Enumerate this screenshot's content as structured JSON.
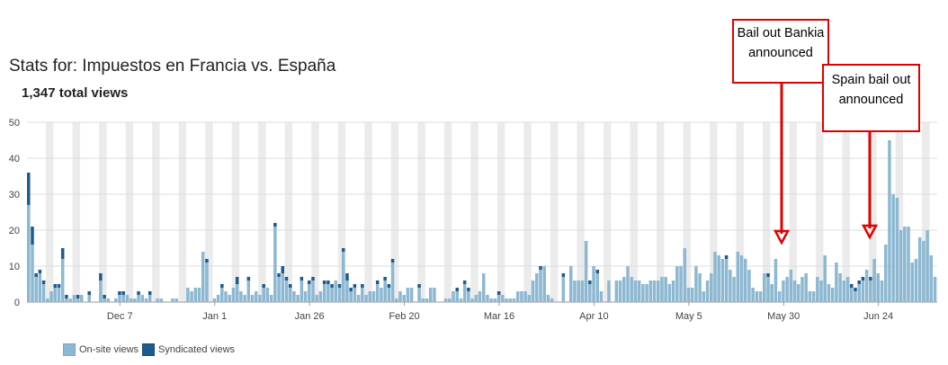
{
  "header": {
    "title": "Stats for: Impuestos en Francia vs. España",
    "total_views": "1,347 total views"
  },
  "legend": {
    "onsite": "On-site views",
    "syndicated": "Syndicated views"
  },
  "callouts": [
    {
      "text": "Bail out Bankia announced"
    },
    {
      "text": "Spain bail out announced"
    }
  ],
  "colors": {
    "onsite": "#8db8d2",
    "syndicated": "#1d5b8e",
    "weekend": "#ebebeb",
    "grid": "#dddddd",
    "callout": "#e00000"
  },
  "chart_data": {
    "type": "bar",
    "stacked": true,
    "title": "Stats for: Impuestos en Francia vs. España",
    "ylim": [
      0,
      50
    ],
    "y_ticks": [
      0,
      10,
      20,
      30,
      40,
      50
    ],
    "x_tick_labels": [
      {
        "label": "Dec 7",
        "index": 24
      },
      {
        "label": "Jan 1",
        "index": 49
      },
      {
        "label": "Jan 26",
        "index": 74
      },
      {
        "label": "Feb 20",
        "index": 99
      },
      {
        "label": "Mar 16",
        "index": 124
      },
      {
        "label": "Apr 10",
        "index": 149
      },
      {
        "label": "May 5",
        "index": 174
      },
      {
        "label": "May 30",
        "index": 199
      },
      {
        "label": "Jun 24",
        "index": 224
      }
    ],
    "grid": true,
    "legend_position": "bottom-left",
    "series": [
      {
        "name": "On-site views",
        "values": [
          27,
          16,
          7,
          8,
          5,
          1,
          3,
          4,
          4,
          12,
          1,
          1,
          2,
          1,
          2,
          0,
          2,
          0,
          0,
          6,
          1,
          1,
          0,
          1,
          2,
          2,
          2,
          1,
          1,
          2,
          2,
          1,
          2,
          0,
          1,
          1,
          0,
          0,
          1,
          1,
          0,
          0,
          4,
          3,
          4,
          4,
          14,
          11,
          0,
          1,
          2,
          4,
          3,
          2,
          4,
          5,
          3,
          2,
          6,
          2,
          3,
          2,
          4,
          4,
          2,
          21,
          7,
          8,
          6,
          4,
          3,
          2,
          6,
          3,
          5,
          6,
          2,
          3,
          5,
          5,
          4,
          6,
          4,
          14,
          6,
          3,
          4,
          2,
          4,
          2,
          3,
          3,
          5,
          4,
          6,
          4,
          11,
          1,
          3,
          2,
          4,
          4,
          0,
          4,
          1,
          1,
          4,
          4,
          0,
          0,
          1,
          1,
          3,
          3,
          1,
          5,
          3,
          1,
          2,
          3,
          8,
          2,
          1,
          1,
          2,
          2,
          1,
          1,
          1,
          3,
          3,
          3,
          2,
          6,
          8,
          9,
          10,
          2,
          1,
          0,
          0,
          7,
          0,
          10,
          6,
          6,
          6,
          17,
          5,
          10,
          8,
          3,
          0,
          6,
          0,
          6,
          6,
          7,
          10,
          7,
          6,
          6,
          5,
          5,
          6,
          6,
          6,
          7,
          7,
          5,
          6,
          10,
          10,
          15,
          4,
          4,
          10,
          8,
          3,
          6,
          8,
          14,
          13,
          12,
          12,
          9,
          7,
          14,
          13,
          12,
          9,
          4,
          3,
          3,
          8,
          7,
          5,
          12,
          3,
          6,
          7,
          9,
          6,
          5,
          7,
          8,
          3,
          3,
          7,
          6,
          13,
          5,
          4,
          11,
          8,
          6,
          7,
          4,
          3,
          5,
          6,
          9,
          6,
          12,
          8,
          6,
          16,
          45,
          30,
          29,
          20,
          21,
          21,
          11,
          12,
          18,
          17,
          20,
          13,
          7
        ]
      },
      {
        "name": "Syndicated views",
        "values": [
          9,
          5,
          1,
          1,
          1,
          0,
          0,
          1,
          1,
          3,
          1,
          0,
          0,
          1,
          0,
          0,
          1,
          0,
          0,
          2,
          1,
          0,
          0,
          0,
          1,
          1,
          0,
          0,
          0,
          1,
          0,
          0,
          1,
          0,
          0,
          0,
          0,
          0,
          0,
          0,
          0,
          0,
          0,
          0,
          0,
          0,
          0,
          1,
          0,
          0,
          0,
          1,
          0,
          0,
          0,
          2,
          0,
          0,
          1,
          0,
          0,
          0,
          1,
          0,
          0,
          1,
          1,
          2,
          1,
          1,
          0,
          0,
          1,
          0,
          1,
          1,
          0,
          0,
          1,
          1,
          1,
          0,
          1,
          1,
          2,
          1,
          1,
          0,
          1,
          0,
          0,
          0,
          1,
          0,
          1,
          1,
          1,
          0,
          0,
          0,
          0,
          0,
          0,
          1,
          0,
          0,
          0,
          0,
          0,
          0,
          0,
          0,
          0,
          1,
          0,
          1,
          1,
          0,
          0,
          0,
          0,
          0,
          0,
          0,
          1,
          0,
          0,
          0,
          0,
          0,
          0,
          0,
          0,
          0,
          0,
          1,
          0,
          0,
          0,
          0,
          0,
          1,
          0,
          0,
          0,
          0,
          0,
          0,
          1,
          0,
          1,
          0,
          0,
          0,
          0,
          0,
          0,
          0,
          0,
          0,
          0,
          0,
          0,
          0,
          0,
          0,
          0,
          0,
          0,
          0,
          0,
          0,
          0,
          0,
          0,
          0,
          0,
          0,
          0,
          0,
          0,
          0,
          0,
          0,
          1,
          0,
          0,
          0,
          0,
          0,
          0,
          0,
          0,
          0,
          0,
          1,
          0,
          0,
          0,
          0,
          0,
          0,
          0,
          0,
          0,
          0,
          0,
          0,
          0,
          0,
          0,
          0,
          0,
          0,
          0,
          0,
          0,
          1,
          1,
          1,
          1,
          0,
          1,
          0,
          0,
          0,
          0,
          0,
          0,
          0,
          0,
          0,
          0,
          0,
          0,
          0,
          0,
          0,
          0,
          0,
          0,
          0
        ]
      }
    ]
  }
}
